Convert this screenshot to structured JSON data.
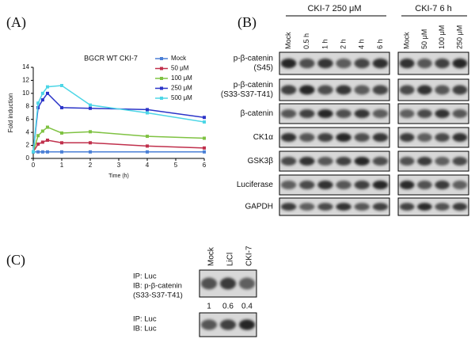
{
  "panel_labels": [
    "(A)",
    "(B)",
    "(C)"
  ],
  "chart_data": {
    "type": "line",
    "title": "BGCR WT CKI-7",
    "x_label": "Time (h)",
    "y_label": "Fold induction",
    "x": [
      0,
      0.17,
      0.33,
      0.5,
      1,
      2,
      4,
      6
    ],
    "xlim": [
      0,
      6
    ],
    "xticks": [
      0,
      1,
      2,
      3,
      4,
      5,
      6
    ],
    "ylim": [
      0,
      14
    ],
    "yticks": [
      0,
      2,
      4,
      6,
      8,
      10,
      12,
      14
    ],
    "legend": "top-right",
    "series": [
      {
        "name": "Mock",
        "color": "#4a7fd6",
        "values": [
          1,
          1,
          1,
          1,
          1,
          1,
          1,
          1
        ]
      },
      {
        "name": "50 μM",
        "color": "#c0304c",
        "values": [
          1,
          2.2,
          2.5,
          2.8,
          2.4,
          2.4,
          1.9,
          1.6
        ]
      },
      {
        "name": "100 μM",
        "color": "#7fc242",
        "values": [
          1,
          3.5,
          4.2,
          4.8,
          3.9,
          4.1,
          3.4,
          3.1
        ]
      },
      {
        "name": "250 μM",
        "color": "#2b34c8",
        "values": [
          1,
          7.8,
          9,
          10,
          7.8,
          7.7,
          7.5,
          6.3
        ]
      },
      {
        "name": "500 μM",
        "color": "#4dd6e6",
        "values": [
          1,
          8.5,
          10,
          11,
          11.2,
          8.2,
          7,
          5.6
        ]
      }
    ]
  },
  "blot_b": {
    "group_headers": [
      "CKI-7 250 μM",
      "CKI-7   6 h"
    ],
    "lanes_left": [
      "Mock",
      "0.5 h",
      "1 h",
      "2 h",
      "4 h",
      "6 h"
    ],
    "lanes_right": [
      "Mock",
      "50 μM",
      "100 μM",
      "250 μM"
    ],
    "rows": [
      [
        "p-β-catenin",
        "(S45)"
      ],
      [
        "p-β-catenin",
        "(S33-S37-T41)"
      ],
      [
        "β-catenin"
      ],
      [
        "CK1α"
      ],
      [
        "GSK3β"
      ],
      [
        "Luciferase"
      ],
      [
        "GAPDH"
      ]
    ]
  },
  "blot_c": {
    "lanes": [
      "Mock",
      "LiCl",
      "CKI-7"
    ],
    "top_labels": [
      "IP: Luc",
      "IB: p-β-catenin",
      "(S33-S37-T41)"
    ],
    "quantities": [
      1,
      0.6,
      0.4
    ],
    "bottom_labels": [
      "IP: Luc",
      "IB: Luc"
    ]
  }
}
